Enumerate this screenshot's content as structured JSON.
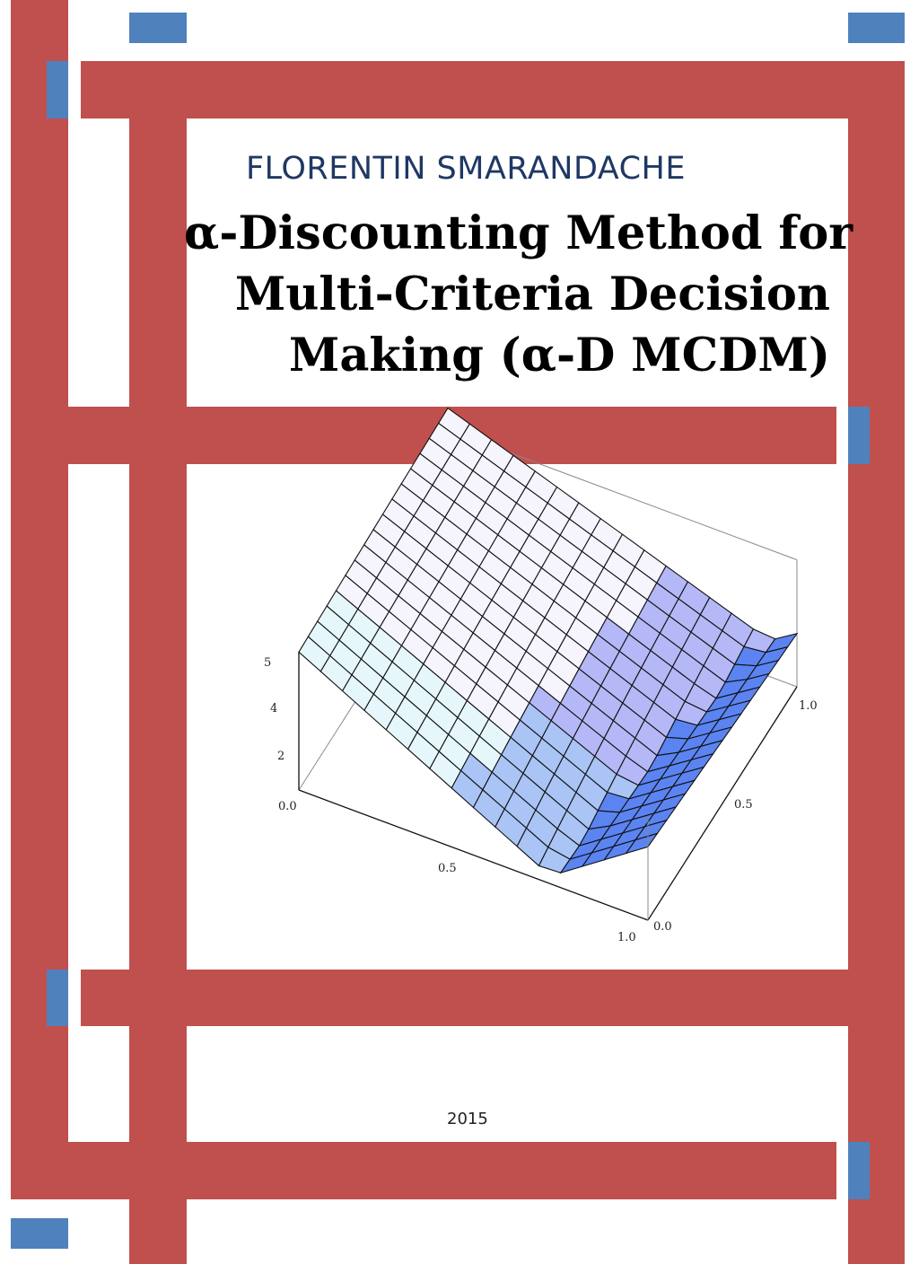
{
  "cover": {
    "author": "FLORENTIN SMARANDACHE",
    "title_lines": [
      "α-Discounting Method for",
      "Multi-Criteria Decision",
      "Making (α-D MCDM)"
    ],
    "year": "2015",
    "colors": {
      "frame_red": "#c0504d",
      "accent_blue": "#4f81bd",
      "author_text": "#1f3864"
    },
    "plot": {
      "z_ticks": [
        "5",
        "4",
        "2"
      ],
      "x_ticks": [
        "0.0",
        "0.5",
        "1.0"
      ],
      "y_ticks": [
        "0.0",
        "0.5",
        "1.0"
      ]
    }
  }
}
